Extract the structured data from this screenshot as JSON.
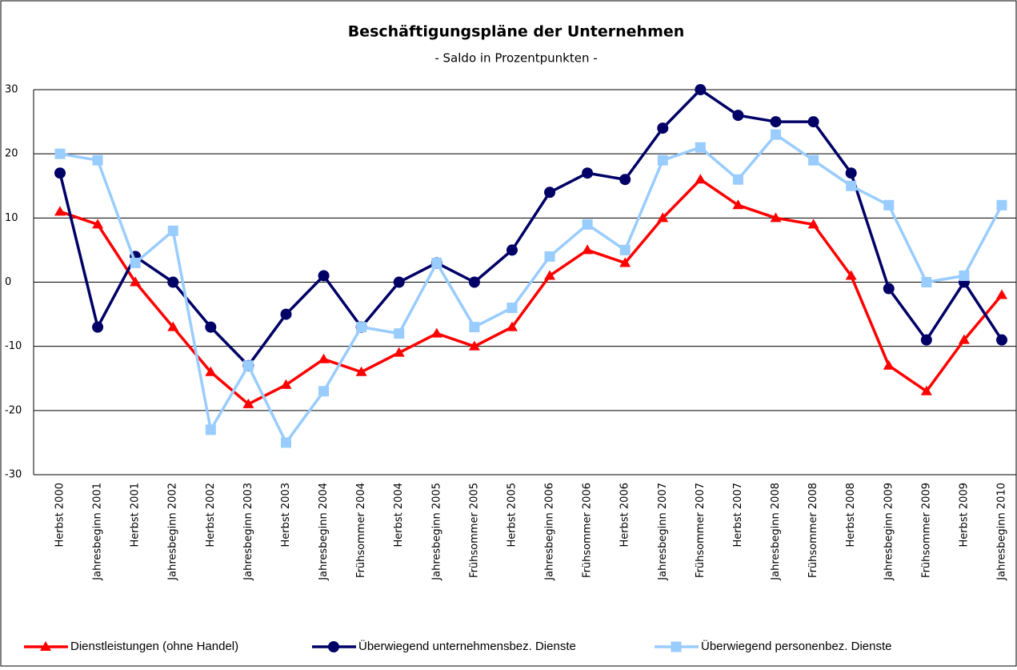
{
  "chart_data": {
    "type": "line",
    "title": "Beschäftigungspläne der Unternehmen",
    "subtitle": "- Saldo in Prozentpunkten -",
    "categories": [
      "Herbst 2000",
      "Jahresbeginn 2001",
      "Herbst 2001",
      "Jahresbeginn 2002",
      "Herbst 2002",
      "Jahresbeginn 2003",
      "Herbst 2003",
      "Jahresbeginn 2004",
      "Frühsommer 2004",
      "Herbst 2004",
      "Jahresbeginn 2005",
      "Frühsommer 2005",
      "Herbst 2005",
      "Jahresbeginn 2006",
      "Frühsommer 2006",
      "Herbst 2006",
      "Jahresbeginn 2007",
      "Frühsommer 2007",
      "Herbst 2007",
      "Jahresbeginn 2008",
      "Frühsommer 2008",
      "Herbst 2008",
      "Jahresbeginn 2009",
      "Frühsommer 2009",
      "Herbst 2009",
      "Jahresbeginn 2010"
    ],
    "series": [
      {
        "name": "Dienstleistungen (ohne Handel)",
        "color": "#ff0000",
        "marker": "triangle",
        "values": [
          11,
          9,
          0,
          -7,
          -14,
          -19,
          -16,
          -12,
          -14,
          -11,
          -8,
          -10,
          -7,
          1,
          5,
          3,
          10,
          16,
          12,
          10,
          9,
          1,
          -13,
          -17,
          -9,
          -2
        ]
      },
      {
        "name": "Überwiegend unternehmensbez. Dienste",
        "color": "#000066",
        "marker": "circle",
        "values": [
          17,
          -7,
          4,
          0,
          -7,
          -13,
          -5,
          1,
          -7,
          0,
          3,
          0,
          5,
          14,
          17,
          16,
          24,
          30,
          26,
          25,
          25,
          17,
          -1,
          -9,
          0,
          -9
        ]
      },
      {
        "name": "Überwiegend personenbez. Dienste",
        "color": "#99ccff",
        "marker": "square",
        "values": [
          20,
          19,
          3,
          8,
          -23,
          -13,
          -25,
          -17,
          -7,
          -8,
          3,
          -7,
          -4,
          4,
          9,
          5,
          19,
          21,
          16,
          23,
          19,
          15,
          12,
          0,
          1,
          12
        ]
      }
    ],
    "ylim": [
      -30,
      30
    ],
    "yticks": [
      -30,
      -20,
      -10,
      0,
      10,
      20,
      30
    ],
    "grid": true,
    "legend": "bottom"
  }
}
